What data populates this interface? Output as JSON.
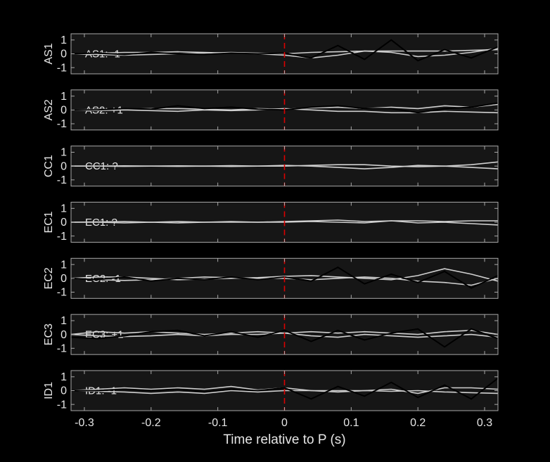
{
  "chart_data": [
    {
      "type": "line",
      "ylabel": "AS1",
      "annotation": "AS1: -1",
      "annotation_color": "#1a1aa8",
      "x": [
        -0.32,
        -0.28,
        -0.24,
        -0.2,
        -0.16,
        -0.12,
        -0.08,
        -0.04,
        0,
        0.04,
        0.08,
        0.12,
        0.16,
        0.2,
        0.24,
        0.28,
        0.32
      ],
      "series": [
        {
          "color": "#d0d0d0",
          "values": [
            0,
            0.05,
            0.1,
            0.1,
            0.15,
            0.1,
            0.05,
            0,
            -0.1,
            -0.3,
            -0.1,
            0.2,
            0.1,
            -0.2,
            -0.1,
            0.1,
            0.4
          ]
        },
        {
          "color": "#d0d0d0",
          "values": [
            0,
            -0.05,
            -0.1,
            -0.05,
            0,
            0.05,
            0.1,
            0.05,
            0,
            0.1,
            0.15,
            0.2,
            0.2,
            0.2,
            0.2,
            0.25,
            0.3
          ]
        },
        {
          "color": "#000000",
          "values": [
            0,
            0.05,
            -0.05,
            0.1,
            0,
            -0.05,
            0.05,
            0,
            0.05,
            -0.3,
            0.6,
            -0.4,
            1.0,
            -0.5,
            0.3,
            -0.3,
            0.5
          ]
        }
      ],
      "xlim": [
        -0.32,
        0.32
      ],
      "ylim": [
        -1.45,
        1.45
      ],
      "xticks": [
        -0.3,
        -0.2,
        -0.1,
        0,
        0.1,
        0.2,
        0.3
      ],
      "yticks": [
        -1,
        0,
        1
      ],
      "vline": 0,
      "vline_color": "#dd0000"
    },
    {
      "type": "line",
      "ylabel": "AS2",
      "annotation": "AS2: +1",
      "annotation_color": "#cc1111",
      "x": [
        -0.32,
        -0.28,
        -0.24,
        -0.2,
        -0.16,
        -0.12,
        -0.08,
        -0.04,
        0,
        0.04,
        0.08,
        0.12,
        0.16,
        0.2,
        0.24,
        0.28,
        0.32
      ],
      "series": [
        {
          "color": "#d0d0d0",
          "values": [
            0,
            0.05,
            0.05,
            0.1,
            0.1,
            0.05,
            0,
            0.1,
            0.05,
            0.15,
            0.2,
            0.1,
            0.2,
            0.1,
            0.3,
            0.2,
            0.4
          ]
        },
        {
          "color": "#d0d0d0",
          "values": [
            0,
            -0.05,
            0,
            -0.05,
            -0.1,
            0,
            -0.05,
            0,
            0.1,
            0,
            -0.1,
            -0.1,
            -0.2,
            -0.2,
            -0.1,
            -0.15,
            -0.2
          ]
        },
        {
          "color": "#000000",
          "values": [
            0,
            0,
            0.1,
            0.05,
            0.3,
            0.1,
            0.2,
            0.05,
            0,
            0.2,
            0.3,
            0.1,
            0.1,
            -0.2,
            0.1,
            0.2,
            0.5
          ]
        }
      ],
      "xlim": [
        -0.32,
        0.32
      ],
      "ylim": [
        -1.45,
        1.45
      ],
      "xticks": [
        -0.3,
        -0.2,
        -0.1,
        0,
        0.1,
        0.2,
        0.3
      ],
      "yticks": [
        -1,
        0,
        1
      ],
      "vline": 0,
      "vline_color": "#dd0000"
    },
    {
      "type": "line",
      "ylabel": "CC1",
      "annotation": "CC1: ?",
      "annotation_color": "#8a8a8a",
      "x": [
        -0.32,
        -0.28,
        -0.24,
        -0.2,
        -0.16,
        -0.12,
        -0.08,
        -0.04,
        0,
        0.04,
        0.08,
        0.12,
        0.16,
        0.2,
        0.24,
        0.28,
        0.32
      ],
      "series": [
        {
          "color": "#d0d0d0",
          "values": [
            0,
            0,
            0.02,
            0,
            0.02,
            0,
            0.03,
            0,
            0.05,
            0,
            -0.1,
            -0.2,
            -0.1,
            0.05,
            0,
            0.1,
            0.3
          ]
        },
        {
          "color": "#d0d0d0",
          "values": [
            0,
            0,
            -0.02,
            0,
            -0.02,
            0,
            -0.03,
            0,
            0,
            0.05,
            0.1,
            0.1,
            0,
            -0.05,
            0,
            -0.1,
            -0.2
          ]
        }
      ],
      "xlim": [
        -0.32,
        0.32
      ],
      "ylim": [
        -1.45,
        1.45
      ],
      "xticks": [
        -0.3,
        -0.2,
        -0.1,
        0,
        0.1,
        0.2,
        0.3
      ],
      "yticks": [
        -1,
        0,
        1
      ],
      "vline": 0,
      "vline_color": "#dd0000"
    },
    {
      "type": "line",
      "ylabel": "EC1",
      "annotation": "EC1: ?",
      "annotation_color": "#8a8a8a",
      "x": [
        -0.32,
        -0.28,
        -0.24,
        -0.2,
        -0.16,
        -0.12,
        -0.08,
        -0.04,
        0,
        0.04,
        0.08,
        0.12,
        0.16,
        0.2,
        0.24,
        0.28,
        0.32
      ],
      "series": [
        {
          "color": "#d0d0d0",
          "values": [
            0,
            0.02,
            0.05,
            0,
            0.05,
            0,
            0.05,
            0,
            0.05,
            0.1,
            0.15,
            0.05,
            0.1,
            0.1,
            0.05,
            0.1,
            0.1
          ]
        },
        {
          "color": "#d0d0d0",
          "values": [
            0,
            0,
            -0.05,
            0,
            -0.05,
            0,
            0,
            0,
            0,
            0.05,
            0,
            -0.05,
            0.1,
            -0.05,
            0,
            -0.1,
            -0.2
          ]
        }
      ],
      "xlim": [
        -0.32,
        0.32
      ],
      "ylim": [
        -1.45,
        1.45
      ],
      "xticks": [
        -0.3,
        -0.2,
        -0.1,
        0,
        0.1,
        0.2,
        0.3
      ],
      "yticks": [
        -1,
        0,
        1
      ],
      "vline": 0,
      "vline_color": "#dd0000"
    },
    {
      "type": "line",
      "ylabel": "EC2",
      "annotation": "EC2: -1",
      "annotation_color": "#1a1aa8",
      "x": [
        -0.32,
        -0.28,
        -0.24,
        -0.2,
        -0.16,
        -0.12,
        -0.08,
        -0.04,
        0,
        0.04,
        0.08,
        0.12,
        0.16,
        0.2,
        0.24,
        0.28,
        0.32
      ],
      "series": [
        {
          "color": "#d0d0d0",
          "values": [
            0,
            0.1,
            0.1,
            0,
            -0.1,
            -0.05,
            0,
            0.05,
            0.15,
            0.2,
            0.1,
            0,
            -0.1,
            0.2,
            0.7,
            0.3,
            -0.2
          ]
        },
        {
          "color": "#d0d0d0",
          "values": [
            0,
            -0.1,
            -0.15,
            -0.1,
            0,
            0.1,
            0.05,
            0,
            0,
            -0.1,
            0,
            0.1,
            0,
            -0.2,
            -0.3,
            -0.5,
            0
          ]
        },
        {
          "color": "#000000",
          "values": [
            0,
            -0.1,
            0.1,
            -0.2,
            0,
            -0.1,
            0.1,
            -0.1,
            0.1,
            -0.2,
            0.8,
            -0.4,
            0.3,
            -0.3,
            0.5,
            -0.7,
            0.2
          ]
        }
      ],
      "xlim": [
        -0.32,
        0.32
      ],
      "ylim": [
        -1.45,
        1.45
      ],
      "xticks": [
        -0.3,
        -0.2,
        -0.1,
        0,
        0.1,
        0.2,
        0.3
      ],
      "yticks": [
        -1,
        0,
        1
      ],
      "vline": 0,
      "vline_color": "#dd0000"
    },
    {
      "type": "line",
      "ylabel": "EC3",
      "annotation": "EC3: +1",
      "annotation_color": "#cc1111",
      "x": [
        -0.32,
        -0.28,
        -0.24,
        -0.2,
        -0.16,
        -0.12,
        -0.08,
        -0.04,
        0,
        0.04,
        0.08,
        0.12,
        0.16,
        0.2,
        0.24,
        0.28,
        0.32
      ],
      "series": [
        {
          "color": "#d0d0d0",
          "values": [
            0,
            0.2,
            0.1,
            0.2,
            0.1,
            0,
            0.1,
            0.2,
            0.1,
            0.2,
            0.1,
            0.2,
            0.1,
            0,
            0.2,
            0.3,
            0
          ]
        },
        {
          "color": "#d0d0d0",
          "values": [
            0,
            -0.1,
            -0.15,
            -0.1,
            0,
            -0.1,
            0,
            0,
            0.1,
            -0.1,
            -0.2,
            0,
            -0.1,
            -0.2,
            -0.1,
            0,
            -0.2
          ]
        },
        {
          "color": "#000000",
          "values": [
            -0.2,
            -0.3,
            -0.1,
            0.2,
            0.3,
            -0.1,
            0.2,
            -0.2,
            0.3,
            -0.5,
            0.3,
            -0.4,
            0.1,
            0.4,
            -0.9,
            0.4,
            -0.3
          ]
        }
      ],
      "xlim": [
        -0.32,
        0.32
      ],
      "ylim": [
        -1.45,
        1.45
      ],
      "xticks": [
        -0.3,
        -0.2,
        -0.1,
        0,
        0.1,
        0.2,
        0.3
      ],
      "yticks": [
        -1,
        0,
        1
      ],
      "vline": 0,
      "vline_color": "#dd0000"
    },
    {
      "type": "line",
      "ylabel": "ID1",
      "annotation": "ID1: -1",
      "annotation_color": "#1a1aa8",
      "xlabel": "Time relative to P (s)",
      "x": [
        -0.32,
        -0.28,
        -0.24,
        -0.2,
        -0.16,
        -0.12,
        -0.08,
        -0.04,
        0,
        0.04,
        0.08,
        0.12,
        0.16,
        0.2,
        0.24,
        0.28,
        0.32
      ],
      "series": [
        {
          "color": "#d0d0d0",
          "values": [
            0,
            0.1,
            0.2,
            0.1,
            0.2,
            0.1,
            0.3,
            0.05,
            0.2,
            0,
            0,
            0,
            0.1,
            -0.2,
            0.2,
            0.2,
            0.1
          ]
        },
        {
          "color": "#d0d0d0",
          "values": [
            0,
            -0.05,
            -0.1,
            -0.2,
            -0.1,
            -0.2,
            0,
            -0.1,
            0,
            0,
            -0.1,
            0,
            -0.05,
            0,
            -0.1,
            -0.15,
            -0.2
          ]
        },
        {
          "color": "#000000",
          "values": [
            0,
            0,
            0.1,
            0,
            0.1,
            -0.1,
            0.1,
            0,
            0.2,
            -0.6,
            0.3,
            -0.4,
            0.6,
            -0.5,
            0.4,
            -0.6,
            0.9
          ]
        }
      ],
      "xlim": [
        -0.32,
        0.32
      ],
      "ylim": [
        -1.45,
        1.45
      ],
      "xticks": [
        -0.3,
        -0.2,
        -0.1,
        0,
        0.1,
        0.2,
        0.3
      ],
      "yticks": [
        -1,
        0,
        1
      ],
      "vline": 0,
      "vline_color": "#dd0000"
    }
  ]
}
